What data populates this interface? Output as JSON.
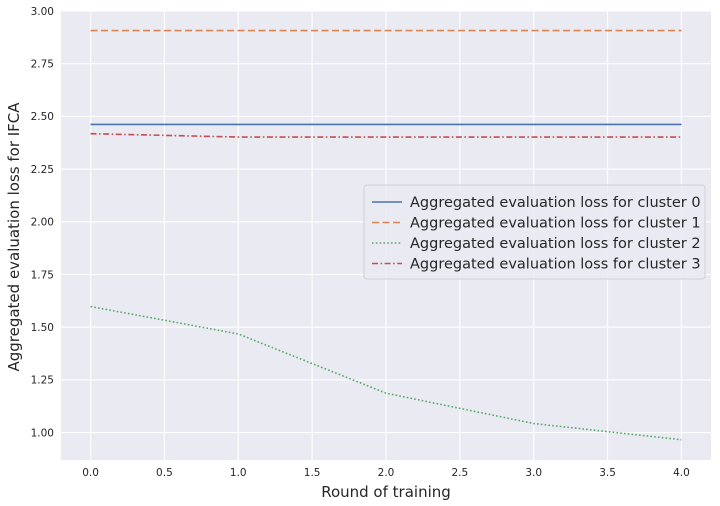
{
  "chart_data": {
    "type": "line",
    "xlabel": "Round of training",
    "ylabel": "Aggregated evaluation loss for IFCA",
    "xlim": [
      -0.2,
      4.2
    ],
    "ylim": [
      0.87,
      3.0
    ],
    "grid": true,
    "legend_position": "center-right",
    "x": [
      0,
      1,
      2,
      3,
      4
    ],
    "x_ticks": [
      0.0,
      0.5,
      1.0,
      1.5,
      2.0,
      2.5,
      3.0,
      3.5,
      4.0
    ],
    "x_tick_labels": [
      "0.0",
      "0.5",
      "1.0",
      "1.5",
      "2.0",
      "2.5",
      "3.0",
      "3.5",
      "4.0"
    ],
    "y_ticks": [
      1.0,
      1.25,
      1.5,
      1.75,
      2.0,
      2.25,
      2.5,
      2.75,
      3.0
    ],
    "y_tick_labels": [
      "1.00",
      "1.25",
      "1.50",
      "1.75",
      "2.00",
      "2.25",
      "2.50",
      "2.75",
      "3.00"
    ],
    "series": [
      {
        "name": "Aggregated evaluation loss for cluster 0",
        "values": [
          2.462,
          2.462,
          2.462,
          2.462,
          2.462
        ],
        "color": "#4c72b0",
        "dash": "solid"
      },
      {
        "name": "Aggregated evaluation loss for cluster 1",
        "values": [
          2.907,
          2.907,
          2.907,
          2.907,
          2.907
        ],
        "color": "#dd8452",
        "dash": "dashed"
      },
      {
        "name": "Aggregated evaluation loss for cluster 2",
        "values": [
          1.598,
          1.468,
          1.187,
          1.043,
          0.966
        ],
        "color": "#55a868",
        "dash": "dotted"
      },
      {
        "name": "Aggregated evaluation loss for cluster 3",
        "values": [
          2.418,
          2.402,
          2.402,
          2.402,
          2.402
        ],
        "color": "#c44e52",
        "dash": "dashdot"
      }
    ]
  }
}
